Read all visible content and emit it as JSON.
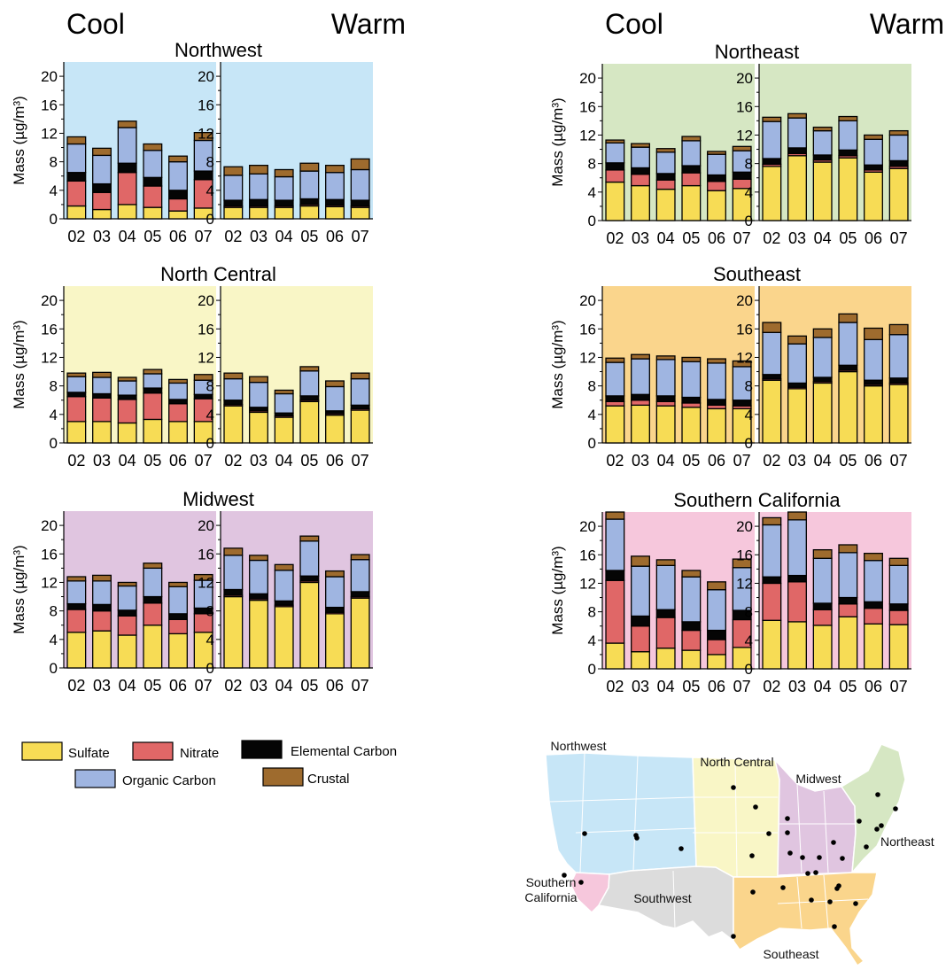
{
  "season_labels": {
    "cool": "Cool",
    "warm": "Warm"
  },
  "y_axis_label": "Mass (µg/m³)",
  "y_ticks": [
    "0",
    "4",
    "8",
    "12",
    "16",
    "20"
  ],
  "legend": {
    "items": [
      {
        "key": "sulfate",
        "label": "Sulfate",
        "color": "#f7dc55"
      },
      {
        "key": "nitrate",
        "label": "Nitrate",
        "color": "#e06767"
      },
      {
        "key": "ec",
        "label": "Elemental Carbon",
        "color": "#050505"
      },
      {
        "key": "oc",
        "label": "Organic Carbon",
        "color": "#9fb5e1"
      },
      {
        "key": "crustal",
        "label": "Crustal",
        "color": "#9e6b2e"
      }
    ]
  },
  "chart_data": [
    {
      "type": "bar",
      "stacked": true,
      "region": "Northwest",
      "background": "#c7e6f7",
      "categories": [
        "02",
        "03",
        "04",
        "05",
        "06",
        "07"
      ],
      "ylim": [
        0,
        22
      ],
      "cool": {
        "sulfate": [
          1.8,
          1.3,
          2.0,
          1.6,
          1.1,
          1.5
        ],
        "nitrate": [
          3.5,
          2.4,
          4.5,
          3.0,
          1.7,
          4.0
        ],
        "ec": [
          1.2,
          1.2,
          1.3,
          1.2,
          1.2,
          1.2
        ],
        "oc": [
          4.0,
          4.0,
          5.0,
          3.8,
          4.0,
          4.3
        ],
        "crustal": [
          1.0,
          1.0,
          0.9,
          0.9,
          0.8,
          1.1
        ]
      },
      "warm": {
        "sulfate": [
          1.6,
          1.6,
          1.6,
          1.8,
          1.7,
          1.6
        ],
        "nitrate": [
          0.2,
          0.2,
          0.2,
          0.2,
          0.2,
          0.2
        ],
        "ec": [
          0.8,
          0.9,
          0.8,
          0.8,
          0.8,
          0.8
        ],
        "oc": [
          3.5,
          3.6,
          3.3,
          3.9,
          3.8,
          4.3
        ],
        "crustal": [
          1.2,
          1.2,
          1.0,
          1.1,
          1.0,
          1.5
        ]
      }
    },
    {
      "type": "bar",
      "stacked": true,
      "region": "North Central",
      "background": "#f9f6c6",
      "categories": [
        "02",
        "03",
        "04",
        "05",
        "06",
        "07"
      ],
      "ylim": [
        0,
        22
      ],
      "cool": {
        "sulfate": [
          3.0,
          3.0,
          2.8,
          3.3,
          3.0,
          3.0
        ],
        "nitrate": [
          3.5,
          3.3,
          3.3,
          3.7,
          2.5,
          3.2
        ],
        "ec": [
          0.6,
          0.6,
          0.6,
          0.7,
          0.6,
          0.6
        ],
        "oc": [
          2.2,
          2.3,
          2.0,
          2.0,
          2.3,
          2.0
        ],
        "crustal": [
          0.5,
          0.7,
          0.5,
          0.6,
          0.5,
          0.8
        ]
      },
      "warm": {
        "sulfate": [
          5.2,
          4.3,
          3.6,
          5.8,
          3.9,
          4.6
        ],
        "nitrate": [
          0.2,
          0.2,
          0.2,
          0.2,
          0.2,
          0.2
        ],
        "ec": [
          0.6,
          0.5,
          0.4,
          0.6,
          0.4,
          0.5
        ],
        "oc": [
          3.0,
          3.5,
          2.7,
          3.5,
          3.4,
          3.7
        ],
        "crustal": [
          0.8,
          0.8,
          0.5,
          0.6,
          0.8,
          0.8
        ]
      }
    },
    {
      "type": "bar",
      "stacked": true,
      "region": "Midwest",
      "background": "#e0c5e0",
      "categories": [
        "02",
        "03",
        "04",
        "05",
        "06",
        "07"
      ],
      "ylim": [
        0,
        22
      ],
      "cool": {
        "sulfate": [
          5.0,
          5.2,
          4.6,
          6.0,
          4.8,
          5.0
        ],
        "nitrate": [
          3.2,
          2.8,
          2.7,
          3.1,
          2.0,
          2.6
        ],
        "ec": [
          0.8,
          0.9,
          0.8,
          0.9,
          0.8,
          0.8
        ],
        "oc": [
          3.2,
          3.3,
          3.4,
          4.0,
          3.8,
          3.9
        ],
        "crustal": [
          0.6,
          0.8,
          0.5,
          0.7,
          0.6,
          0.8
        ]
      },
      "warm": {
        "sulfate": [
          10.0,
          9.5,
          8.6,
          12.0,
          7.6,
          9.8
        ],
        "nitrate": [
          0.2,
          0.2,
          0.2,
          0.2,
          0.2,
          0.2
        ],
        "ec": [
          0.8,
          0.7,
          0.6,
          0.7,
          0.7,
          0.7
        ],
        "oc": [
          4.8,
          4.7,
          4.3,
          4.9,
          4.3,
          4.5
        ],
        "crustal": [
          1.0,
          0.7,
          0.8,
          0.7,
          0.8,
          0.7
        ]
      }
    },
    {
      "type": "bar",
      "stacked": true,
      "region": "Northeast",
      "background": "#d6e7c3",
      "categories": [
        "02",
        "03",
        "04",
        "05",
        "06",
        "07"
      ],
      "ylim": [
        0,
        22
      ],
      "cool": {
        "sulfate": [
          5.4,
          4.9,
          4.4,
          4.9,
          4.2,
          4.5
        ],
        "nitrate": [
          1.7,
          1.6,
          1.3,
          1.8,
          1.3,
          1.3
        ],
        "ec": [
          1.0,
          0.9,
          0.9,
          1.0,
          0.9,
          1.0
        ],
        "oc": [
          2.8,
          2.9,
          3.0,
          3.5,
          2.9,
          3.0
        ],
        "crustal": [
          0.4,
          0.5,
          0.5,
          0.6,
          0.4,
          0.6
        ]
      },
      "warm": {
        "sulfate": [
          7.6,
          9.1,
          8.2,
          8.8,
          6.8,
          7.3
        ],
        "nitrate": [
          0.3,
          0.3,
          0.3,
          0.3,
          0.3,
          0.3
        ],
        "ec": [
          0.8,
          0.8,
          0.7,
          0.8,
          0.7,
          0.8
        ],
        "oc": [
          5.2,
          4.2,
          3.4,
          4.1,
          3.6,
          3.6
        ],
        "crustal": [
          0.6,
          0.6,
          0.5,
          0.6,
          0.6,
          0.6
        ]
      }
    },
    {
      "type": "bar",
      "stacked": true,
      "region": "Southeast",
      "background": "#fad58c",
      "categories": [
        "02",
        "03",
        "04",
        "05",
        "06",
        "07"
      ],
      "ylim": [
        0,
        22
      ],
      "cool": {
        "sulfate": [
          5.2,
          5.3,
          5.2,
          5.0,
          4.8,
          4.8
        ],
        "nitrate": [
          0.6,
          0.7,
          0.6,
          0.6,
          0.5,
          0.4
        ],
        "ec": [
          0.8,
          0.8,
          0.8,
          0.8,
          0.8,
          0.8
        ],
        "oc": [
          4.7,
          5.0,
          5.1,
          5.0,
          5.1,
          4.7
        ],
        "crustal": [
          0.6,
          0.6,
          0.5,
          0.6,
          0.6,
          0.8
        ]
      },
      "warm": {
        "sulfate": [
          8.8,
          7.6,
          8.4,
          10.0,
          8.0,
          8.2
        ],
        "nitrate": [
          0.2,
          0.2,
          0.2,
          0.2,
          0.2,
          0.2
        ],
        "ec": [
          0.6,
          0.6,
          0.6,
          0.7,
          0.6,
          0.7
        ],
        "oc": [
          5.9,
          5.5,
          5.6,
          6.0,
          5.7,
          6.1
        ],
        "crustal": [
          1.4,
          1.1,
          1.2,
          1.2,
          1.6,
          1.4
        ]
      }
    },
    {
      "type": "bar",
      "stacked": true,
      "region": "Southern California",
      "background": "#f6c7dc",
      "categories": [
        "02",
        "03",
        "04",
        "05",
        "06",
        "07"
      ],
      "ylim": [
        0,
        22
      ],
      "cool": {
        "sulfate": [
          3.6,
          2.4,
          2.9,
          2.6,
          2.0,
          3.0
        ],
        "nitrate": [
          8.8,
          3.6,
          4.3,
          2.8,
          2.1,
          3.9
        ],
        "ec": [
          1.4,
          1.4,
          1.1,
          1.2,
          1.3,
          1.3
        ],
        "oc": [
          7.2,
          7.0,
          6.2,
          6.3,
          5.7,
          6.0
        ],
        "crustal": [
          1.0,
          1.4,
          0.8,
          0.9,
          1.1,
          1.2
        ]
      },
      "warm": {
        "sulfate": [
          6.8,
          6.6,
          6.1,
          7.3,
          6.3,
          6.2
        ],
        "nitrate": [
          5.2,
          5.6,
          2.2,
          1.8,
          2.2,
          2.0
        ],
        "ec": [
          0.9,
          0.9,
          0.9,
          0.9,
          0.9,
          0.9
        ],
        "oc": [
          7.3,
          7.8,
          6.3,
          6.3,
          5.8,
          5.4
        ],
        "crustal": [
          1.0,
          1.1,
          1.2,
          1.1,
          1.0,
          1.0
        ]
      }
    }
  ],
  "map": {
    "regions": [
      {
        "key": "northwest",
        "label": "Northwest",
        "color": "#c7e6f7"
      },
      {
        "key": "north-central",
        "label": "North Central",
        "color": "#f9f6c6"
      },
      {
        "key": "midwest",
        "label": "Midwest",
        "color": "#e0c5e0"
      },
      {
        "key": "northeast",
        "label": "Northeast",
        "color": "#d6e7c3"
      },
      {
        "key": "southern-california",
        "label": "Southern\nCalifornia",
        "color": "#f6c7dc"
      },
      {
        "key": "southwest",
        "label": "Southwest",
        "color": "#dcdcdc"
      },
      {
        "key": "southeast",
        "label": "Southeast",
        "color": "#fad58c"
      }
    ]
  }
}
